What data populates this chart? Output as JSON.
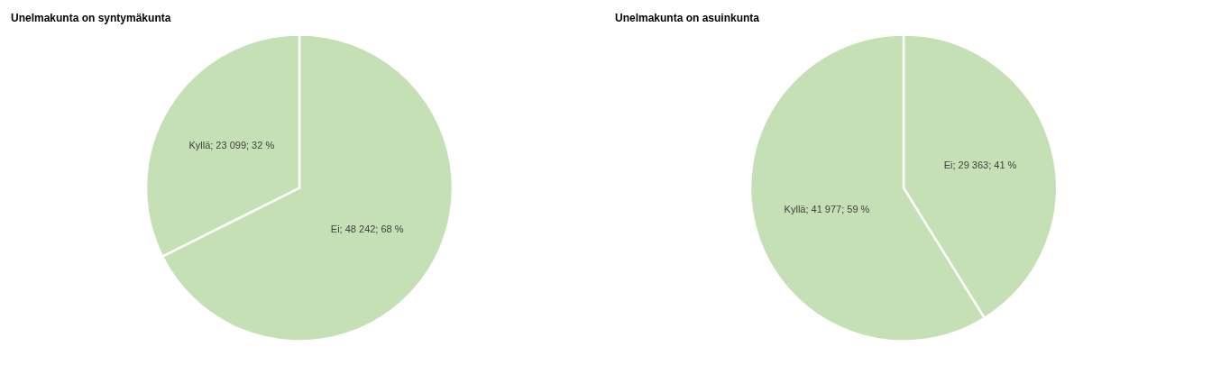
{
  "chart_data": [
    {
      "type": "pie",
      "title": "Unelmakunta on syntymäkunta",
      "categories": [
        "Ei",
        "Kyllä"
      ],
      "values": [
        48242,
        23099
      ],
      "colors": [
        "#c5e0b4",
        "#c5e0b4"
      ],
      "value_labels": [
        "48 242;  68 %",
        "23 099; 32 %"
      ],
      "legend": false
    },
    {
      "type": "pie",
      "title": "Unelmakunta on asuinkunta",
      "categories": [
        "Ei",
        "Kyllä"
      ],
      "values": [
        29363,
        41977
      ],
      "colors": [
        "#c5e0b4",
        "#c5e0b4"
      ],
      "value_labels": [
        "29 363;  41 %",
        "41 977; 59 %"
      ],
      "legend": false
    }
  ]
}
